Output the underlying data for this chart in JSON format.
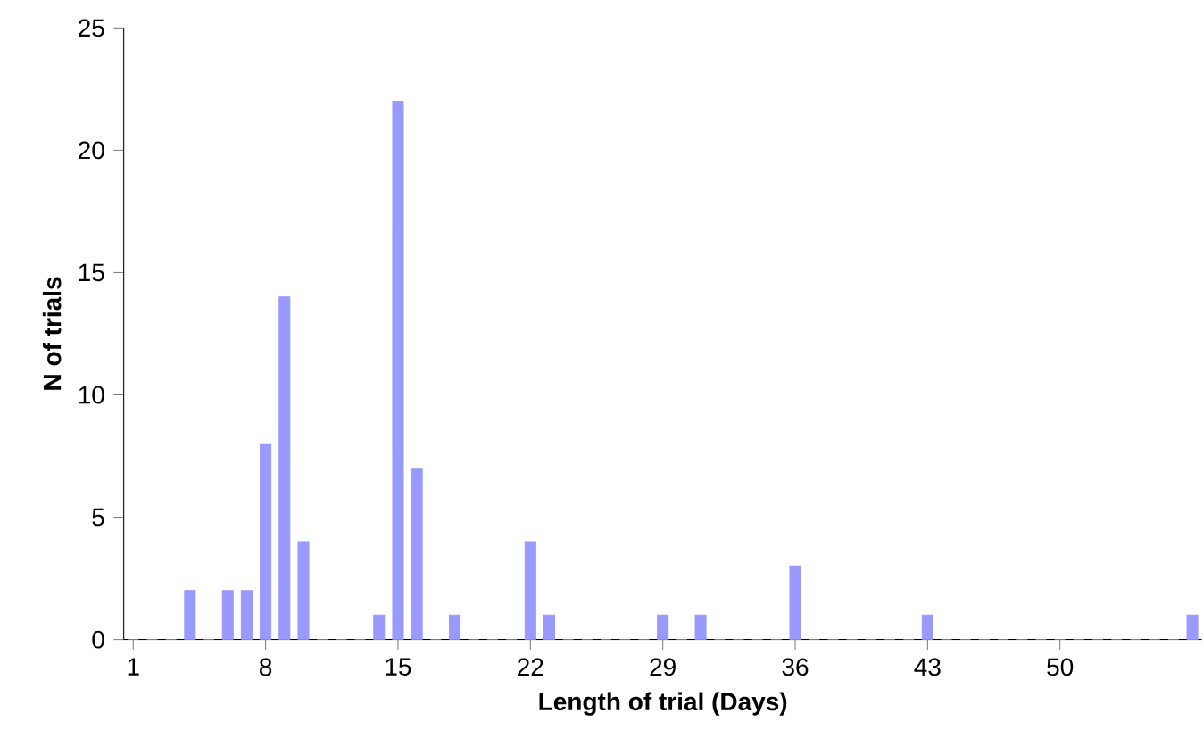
{
  "chart_data": {
    "type": "bar",
    "xlabel": "Length of trial (Days)",
    "ylabel": "N of trials",
    "categories": [
      "1",
      null,
      null,
      null,
      null,
      null,
      null,
      "8",
      null,
      null,
      null,
      null,
      null,
      null,
      "15",
      null,
      null,
      null,
      null,
      null,
      null,
      "22",
      null,
      null,
      null,
      null,
      null,
      null,
      "29",
      null,
      null,
      null,
      null,
      null,
      null,
      "36",
      null,
      null,
      null,
      null,
      null,
      null,
      "43",
      null,
      null,
      null,
      null,
      null,
      null,
      "50",
      null,
      null,
      null,
      null,
      null,
      null,
      null
    ],
    "values": [
      0,
      0,
      0,
      2,
      0,
      2,
      2,
      8,
      14,
      4,
      0,
      0,
      0,
      1,
      22,
      7,
      0,
      1,
      0,
      0,
      0,
      4,
      1,
      0,
      0,
      0,
      0,
      0,
      1,
      0,
      1,
      0,
      0,
      0,
      0,
      3,
      0,
      0,
      0,
      0,
      0,
      0,
      1,
      0,
      0,
      0,
      0,
      0,
      0,
      0,
      0,
      0,
      0,
      0,
      0,
      0,
      1
    ],
    "color": "#9999ff",
    "ylim": [
      0,
      25
    ],
    "yticks": [
      0,
      5,
      10,
      15,
      20,
      25
    ],
    "grid": false
  }
}
